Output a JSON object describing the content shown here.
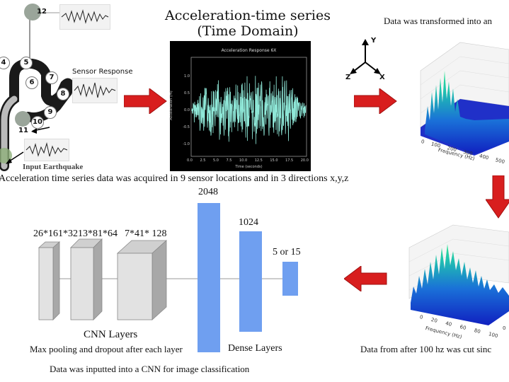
{
  "sensor_diagram": {
    "numbers": [
      "12",
      "4",
      "5",
      "6",
      "7",
      "8",
      "9",
      "10",
      "11"
    ],
    "sensor_response_label": "Sensor Response",
    "input_label": "Input Earthquake"
  },
  "time_series": {
    "title_line1": "Acceleration-time series",
    "title_line2": "(Time Domain)",
    "plot_title": "Acceleration Response 6X",
    "ylabel": "Acceleration (m)",
    "xlabel": "Time (seconds)",
    "yticks": [
      "1.0",
      "0.5",
      "0.0",
      "-0.5",
      "-1.0"
    ],
    "xticks": [
      "0.0",
      "2.5",
      "5.0",
      "7.5",
      "10.0",
      "12.5",
      "15.0",
      "17.5",
      "20.0"
    ]
  },
  "caption_top": "Acceleration time series data was acquired in 9 sensor locations and in 3 directions x,y,z",
  "transform_text": "Data was transformed into an",
  "axes": {
    "y": "Y",
    "z": "Z",
    "x": "X"
  },
  "spectrum_top": {
    "xticks": [
      "0",
      "100",
      "200",
      "300",
      "400",
      "500"
    ],
    "xlabel": "Frequency (Hz)"
  },
  "spectrum_bottom": {
    "xticks": [
      "0",
      "20",
      "40",
      "60",
      "80",
      "100"
    ],
    "xlabel": "Frequency (Hz)",
    "edge_tick": "0"
  },
  "cut_text": "Data from after 100 hz was cut sinc",
  "cnn": {
    "layer1": "26*161*32",
    "layer2": "13*81*64",
    "layer3": "7*41* 128",
    "dense1": "2048",
    "dense2": "1024",
    "dense3": "5 or 15",
    "cnn_label": "CNN Layers",
    "pool_label": "Max pooling and dropout after each layer",
    "dense_label": "Dense Layers",
    "footer": "Data was inputted into a CNN for image classification"
  },
  "colors": {
    "arrow_red": "#d81e1e",
    "dense_blue": "#6f9ff0",
    "trace_cyan": "#8fe8d8"
  }
}
